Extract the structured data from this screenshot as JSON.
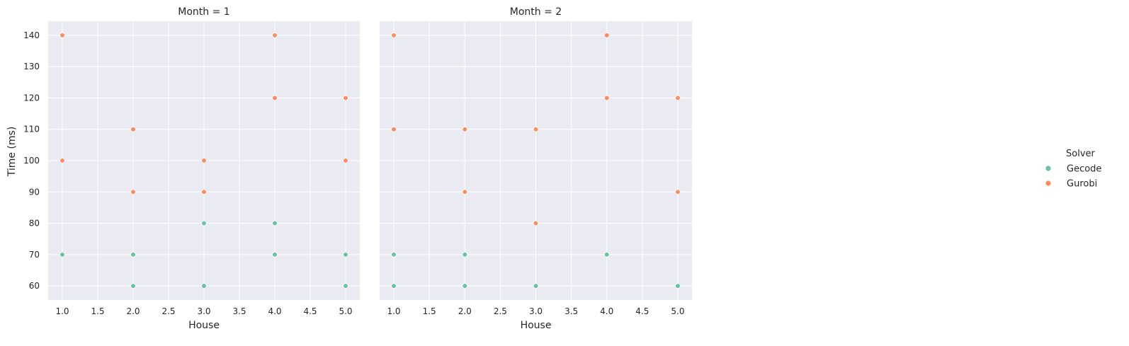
{
  "chart_data": {
    "type": "scatter",
    "ylabel": "Time (ms)",
    "yticks": [
      60,
      70,
      80,
      90,
      100,
      110,
      120,
      130,
      140
    ],
    "ylim": [
      55.5,
      144.5
    ],
    "grid": true,
    "legend": {
      "title": "Solver",
      "placement": "right",
      "entries": [
        {
          "name": "Gecode",
          "color": "#66c2a5"
        },
        {
          "name": "Gurobi",
          "color": "#fc8d62"
        }
      ]
    },
    "panels": [
      {
        "title": "Month = 1",
        "xlabel": "House",
        "xticks": [
          "1.0",
          "1.5",
          "2.0",
          "2.5",
          "3.0",
          "3.5",
          "4.0",
          "4.5",
          "5.0"
        ],
        "xlim": [
          0.8,
          5.2
        ],
        "series": [
          {
            "name": "Gecode",
            "color": "#66c2a5",
            "points": [
              [
                1,
                70
              ],
              [
                2,
                70
              ],
              [
                2,
                60
              ],
              [
                3,
                80
              ],
              [
                3,
                60
              ],
              [
                4,
                80
              ],
              [
                4,
                70
              ],
              [
                5,
                70
              ],
              [
                5,
                60
              ]
            ]
          },
          {
            "name": "Gurobi",
            "color": "#fc8d62",
            "points": [
              [
                1,
                140
              ],
              [
                1,
                100
              ],
              [
                2,
                110
              ],
              [
                2,
                90
              ],
              [
                3,
                100
              ],
              [
                3,
                90
              ],
              [
                4,
                140
              ],
              [
                4,
                120
              ],
              [
                5,
                120
              ],
              [
                5,
                100
              ]
            ]
          }
        ]
      },
      {
        "title": "Month = 2",
        "xlabel": "House",
        "xticks": [
          "1.0",
          "1.5",
          "2.0",
          "2.5",
          "3.0",
          "3.5",
          "4.0",
          "4.5",
          "5.0"
        ],
        "xlim": [
          0.8,
          5.2
        ],
        "series": [
          {
            "name": "Gecode",
            "color": "#66c2a5",
            "points": [
              [
                1,
                70
              ],
              [
                1,
                60
              ],
              [
                2,
                70
              ],
              [
                2,
                60
              ],
              [
                3,
                60
              ],
              [
                4,
                70
              ],
              [
                5,
                60
              ]
            ]
          },
          {
            "name": "Gurobi",
            "color": "#fc8d62",
            "points": [
              [
                1,
                140
              ],
              [
                1,
                110
              ],
              [
                2,
                110
              ],
              [
                2,
                90
              ],
              [
                3,
                110
              ],
              [
                3,
                80
              ],
              [
                4,
                140
              ],
              [
                4,
                120
              ],
              [
                5,
                120
              ],
              [
                5,
                90
              ]
            ]
          }
        ]
      }
    ]
  }
}
